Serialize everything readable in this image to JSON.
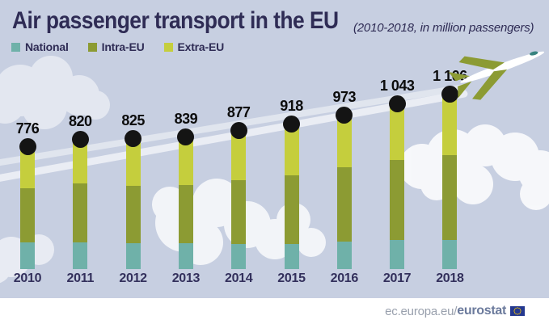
{
  "page": {
    "title": "Air passenger transport in the EU",
    "subtitle": "(2010-2018, in million passengers)"
  },
  "legend": {
    "items": [
      {
        "label": "National",
        "color": "#6fb1a9"
      },
      {
        "label": "Intra-EU",
        "color": "#8c9b33"
      },
      {
        "label": "Extra-EU",
        "color": "#c5ce3d"
      }
    ]
  },
  "footer": {
    "url_prefix": "ec.europa.eu/",
    "brand": "eurostat",
    "flag_icon": "eu-flag-icon"
  },
  "decor": {
    "airplane_icon": "airplane-icon",
    "colors": {
      "background": "#c7cfe1",
      "cloud": "#ffffff",
      "contrail": "#ffffff",
      "marker_dot": "#141414",
      "title_text": "#2f2c55",
      "year_text": "#33305c",
      "value_text": "#0c0c0c",
      "footer_url": "#99a0ad",
      "footer_brand": "#6b7a9c",
      "flag_blue": "#24388f",
      "flag_stars": "#ffcc00"
    }
  },
  "chart_data": {
    "type": "bar",
    "stacked": true,
    "title": "Air passenger transport in the EU",
    "subtitle": "(2010-2018, in million passengers)",
    "unit": "million passengers",
    "categories": [
      "2010",
      "2011",
      "2012",
      "2013",
      "2014",
      "2015",
      "2016",
      "2017",
      "2018"
    ],
    "totals": [
      776,
      820,
      825,
      839,
      877,
      918,
      973,
      1043,
      1106
    ],
    "total_labels": [
      "776",
      "820",
      "825",
      "839",
      "877",
      "918",
      "973",
      "1 043",
      "1 106"
    ],
    "series": [
      {
        "name": "National",
        "color": "#6fb1a9",
        "values": [
          168,
          165,
          163,
          160,
          158,
          157,
          172,
          182,
          182
        ]
      },
      {
        "name": "Intra-EU",
        "color": "#8c9b33",
        "values": [
          338,
          372,
          362,
          370,
          402,
          432,
          466,
          502,
          533
        ]
      },
      {
        "name": "Extra-EU",
        "color": "#c5ce3d",
        "values": [
          270,
          283,
          300,
          309,
          317,
          329,
          335,
          359,
          391
        ]
      }
    ],
    "note": "Only the yearly totals are printed on the chart; per-segment values are estimated from bar proportions",
    "legend_position": "top-left",
    "gridlines": false,
    "value_labels": "totals above bars with round black markers",
    "ylim": [
      0,
      1106
    ]
  }
}
